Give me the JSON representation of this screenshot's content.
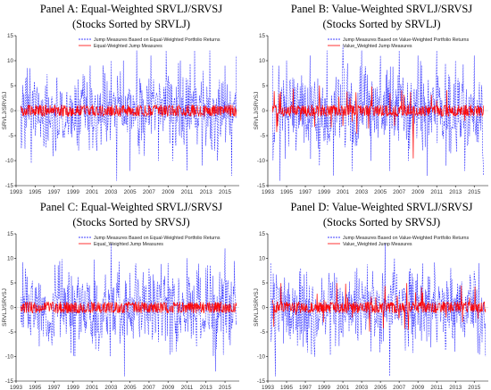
{
  "chart_data": [
    {
      "type": "line",
      "title": "Panel A: Equal-Weighted SRVLJ/SRVSJ",
      "subtitle": "(Stocks Sorted by SRVLJ)",
      "ylabel": "SRVLJ/SRVSJ",
      "ylim": [
        -15,
        15
      ],
      "yticks": [
        15,
        10,
        5,
        0,
        -5,
        -10,
        -15
      ],
      "xlim": [
        1993,
        2016.5
      ],
      "xticks": [
        1993,
        1995,
        1997,
        1999,
        2001,
        2003,
        2005,
        2007,
        2009,
        2011,
        2013,
        2015
      ],
      "legend_position": "top-right",
      "series": [
        {
          "name": "Jump Measures Based on Equal-Weighted Portfolio Returns",
          "color": "#0000ff",
          "style": "dashed",
          "x": [
            1993.5,
            1994.2,
            1994.6,
            1996.0,
            1997.2,
            1998.4,
            1999.2,
            2000.0,
            2000.8,
            2001.5,
            2002.2,
            2003.0,
            2003.6,
            2004.3,
            2005.0,
            2005.7,
            2006.5,
            2007.2,
            2008.0,
            2008.8,
            2009.5,
            2010.3,
            2011.0,
            2011.8,
            2012.6,
            2013.4,
            2014.2,
            2015.0,
            2015.7,
            2016.2
          ],
          "y": [
            1,
            8.5,
            -10.5,
            -5,
            -7.5,
            -2.5,
            5,
            3,
            9,
            -8,
            8,
            10,
            -14,
            10,
            -12,
            12,
            -9,
            11,
            -10,
            12,
            -10,
            10,
            -12,
            12,
            -11,
            12,
            -10,
            9,
            -13,
            11
          ]
        },
        {
          "name": "Equal-Weighted Jump Measures",
          "color": "#ff0000",
          "style": "solid",
          "x": [
            1993.5,
            1996.0,
            1999.0,
            2002.0,
            2005.0,
            2008.0,
            2011.0,
            2014.0,
            2016.2
          ],
          "y": [
            0.5,
            -0.5,
            0.5,
            -0.5,
            0.6,
            -0.6,
            0.5,
            -0.5,
            0.3
          ]
        }
      ]
    },
    {
      "type": "line",
      "title": "Panel B: Value-Weighted SRVLJ/SRVSJ",
      "subtitle": "(Stocks Sorted by SRVLJ)",
      "ylabel": "SRVLJ/SRVSJ",
      "ylim": [
        -15,
        15
      ],
      "yticks": [
        15,
        10,
        5,
        0,
        -5,
        -10,
        -15
      ],
      "xlim": [
        1993,
        2016.5
      ],
      "xticks": [
        1993,
        1995,
        1997,
        1999,
        2001,
        2003,
        2005,
        2007,
        2009,
        2011,
        2013,
        2015
      ],
      "legend_position": "top-right",
      "series": [
        {
          "name": "Jump Measures Based on Value-Weighted Portfolio Returns",
          "color": "#0000ff",
          "style": "dashed",
          "x": [
            1993.5,
            1994.3,
            1995.0,
            1996.0,
            1997.5,
            1998.5,
            1999.3,
            2000.0,
            2001.0,
            2002.0,
            2003.0,
            2004.0,
            2005.0,
            2006.0,
            2007.0,
            2008.0,
            2009.0,
            2010.0,
            2011.0,
            2012.0,
            2013.0,
            2014.0,
            2015.0,
            2016.0
          ],
          "y": [
            9,
            -14,
            10,
            -8,
            11,
            -11,
            12,
            -13,
            13,
            -12,
            12,
            -10,
            11,
            -12,
            12,
            -10,
            11,
            -13,
            12,
            -11,
            10,
            -12,
            11,
            -13
          ]
        },
        {
          "name": "Value_Weighted Jump Measures",
          "color": "#ff0000",
          "style": "solid",
          "x": [
            1993.5,
            1996.5,
            1998.5,
            2001.0,
            2004.0,
            2006.5,
            2008.5,
            2011.0,
            2014.0,
            2016.0
          ],
          "y": [
            1,
            -2,
            5,
            -3,
            2,
            -3,
            -9.5,
            2,
            -2,
            1
          ]
        }
      ]
    },
    {
      "type": "line",
      "title": "Panel C: Equal-Weighted SRVLJ/SRVSJ",
      "subtitle": "(Stocks Sorted by SRVSJ)",
      "ylabel": "SRVLJ/SRVSJ",
      "ylim": [
        -15,
        15
      ],
      "yticks": [
        15,
        10,
        5,
        0,
        -5,
        -10,
        -15
      ],
      "xlim": [
        1993,
        2016.5
      ],
      "xticks": [
        1993,
        1995,
        1997,
        1999,
        2001,
        2003,
        2005,
        2007,
        2009,
        2011,
        2013,
        2015
      ],
      "legend_position": "top-right",
      "series": [
        {
          "name": "Jump Measures Based on Equal-Weighted Portfolio Returns",
          "color": "#0000ff",
          "style": "dashed",
          "x": [
            1993.5,
            1995.0,
            1996.5,
            1998.0,
            1999.2,
            2000.5,
            2001.8,
            2003.0,
            2003.6,
            2004.4,
            2005.0,
            2006.0,
            2007.0,
            2008.0,
            2009.0,
            2010.0,
            2011.0,
            2012.0,
            2013.0,
            2014.0,
            2015.0,
            2016.2
          ],
          "y": [
            -3,
            4,
            -3,
            4,
            -10,
            5,
            -6,
            13,
            5,
            -14,
            7,
            -6,
            8,
            -7,
            9,
            -7,
            10,
            -8,
            8,
            -13,
            12,
            -3
          ]
        },
        {
          "name": "Equal_Weighted Jump Measures",
          "color": "#ff0000",
          "style": "solid",
          "x": [
            1993.5,
            1996.0,
            1999.0,
            2002.0,
            2005.0,
            2008.0,
            2011.0,
            2014.0,
            2016.2
          ],
          "y": [
            0.3,
            -0.5,
            0.4,
            -0.6,
            0.5,
            -0.5,
            0.4,
            -0.4,
            0.3
          ]
        }
      ]
    },
    {
      "type": "line",
      "title": "Panel D: Value-Weighted SRVLJ/SRVSJ",
      "subtitle": "(Stocks Sorted by SRVSJ)",
      "ylabel": "SRVLJ/SRVSJ",
      "ylim": [
        -15,
        15
      ],
      "yticks": [
        15,
        10,
        5,
        0,
        -5,
        -10,
        -15
      ],
      "xlim": [
        1993,
        2016.5
      ],
      "xticks": [
        1993,
        1995,
        1997,
        1999,
        2001,
        2003,
        2005,
        2007,
        2009,
        2011,
        2013,
        2015
      ],
      "legend_position": "top-right",
      "series": [
        {
          "name": "Jump Measures Based on Value-Weighted Portfolio Returns",
          "color": "#0000ff",
          "style": "dashed",
          "x": [
            1993.3,
            1993.8,
            1995.0,
            1996.5,
            1998.0,
            1999.5,
            2001.0,
            2002.5,
            2004.0,
            2005.5,
            2006.0,
            2006.5,
            2008.0,
            2009.5,
            2011.0,
            2012.5,
            2014.0,
            2015.5,
            2016.2
          ],
          "y": [
            9,
            -14,
            -5,
            8,
            -10,
            7,
            -6,
            8,
            -9,
            13,
            -14,
            10,
            -8,
            9,
            -7,
            8,
            -6,
            9,
            -10
          ]
        },
        {
          "name": "Value_Weighted Jump Measures",
          "color": "#ff0000",
          "style": "solid",
          "x": [
            1993.5,
            1996.0,
            1999.0,
            2002.0,
            2004.5,
            2007.0,
            2009.5,
            2012.0,
            2014.5,
            2016.2
          ],
          "y": [
            1.5,
            -1.5,
            1.5,
            -2,
            2,
            -2,
            3,
            -2,
            2,
            -1
          ]
        }
      ]
    }
  ]
}
